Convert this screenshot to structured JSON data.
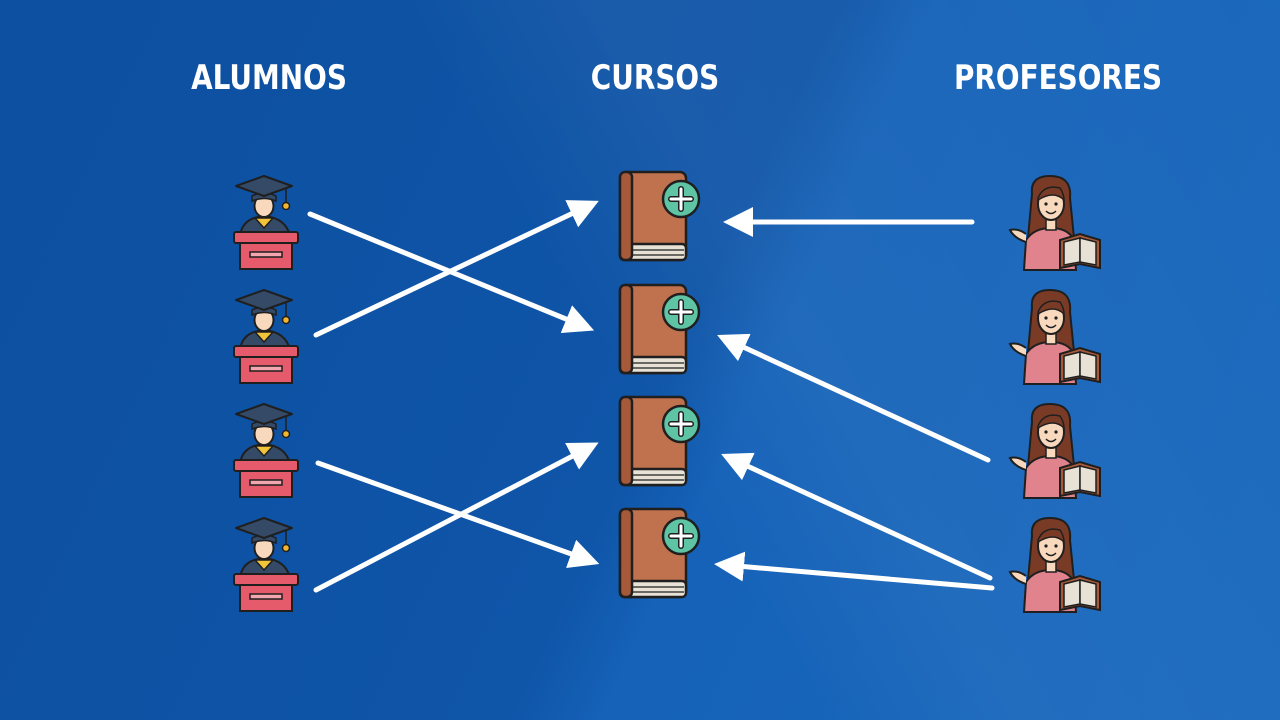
{
  "columns": {
    "alumnos": "ALUMNOS",
    "cursos": "CURSOS",
    "profesores": "PROFESORES"
  },
  "students": [
    {
      "icon": "graduate-student-icon"
    },
    {
      "icon": "graduate-student-icon"
    },
    {
      "icon": "graduate-student-icon"
    },
    {
      "icon": "graduate-student-icon"
    }
  ],
  "courses": [
    {
      "icon": "book-plus-icon"
    },
    {
      "icon": "book-plus-icon"
    },
    {
      "icon": "book-plus-icon"
    },
    {
      "icon": "book-plus-icon"
    }
  ],
  "teachers": [
    {
      "icon": "teacher-with-book-icon"
    },
    {
      "icon": "teacher-with-book-icon"
    },
    {
      "icon": "teacher-with-book-icon"
    },
    {
      "icon": "teacher-with-book-icon"
    }
  ],
  "student_links": [
    {
      "student": 1,
      "course": 2
    },
    {
      "student": 2,
      "course": 1
    },
    {
      "student": 3,
      "course": 4
    },
    {
      "student": 4,
      "course": 3
    }
  ],
  "teacher_links": [
    {
      "teacher": 1,
      "course": 1
    },
    {
      "teacher": 3,
      "course": 2
    },
    {
      "teacher": 4,
      "course": 3
    },
    {
      "teacher": 4,
      "course": 4
    }
  ],
  "colors": {
    "arrow": "#ffffff",
    "book": "#c0714d",
    "book_spine": "#a65a3a",
    "plus_badge": "#5ec4a4",
    "podium": "#e55b6b",
    "cap": "#344a66",
    "skin": "#f9d9bd",
    "hair": "#7a3b26",
    "dress": "#e0838c",
    "outline": "#1f1f1f"
  }
}
